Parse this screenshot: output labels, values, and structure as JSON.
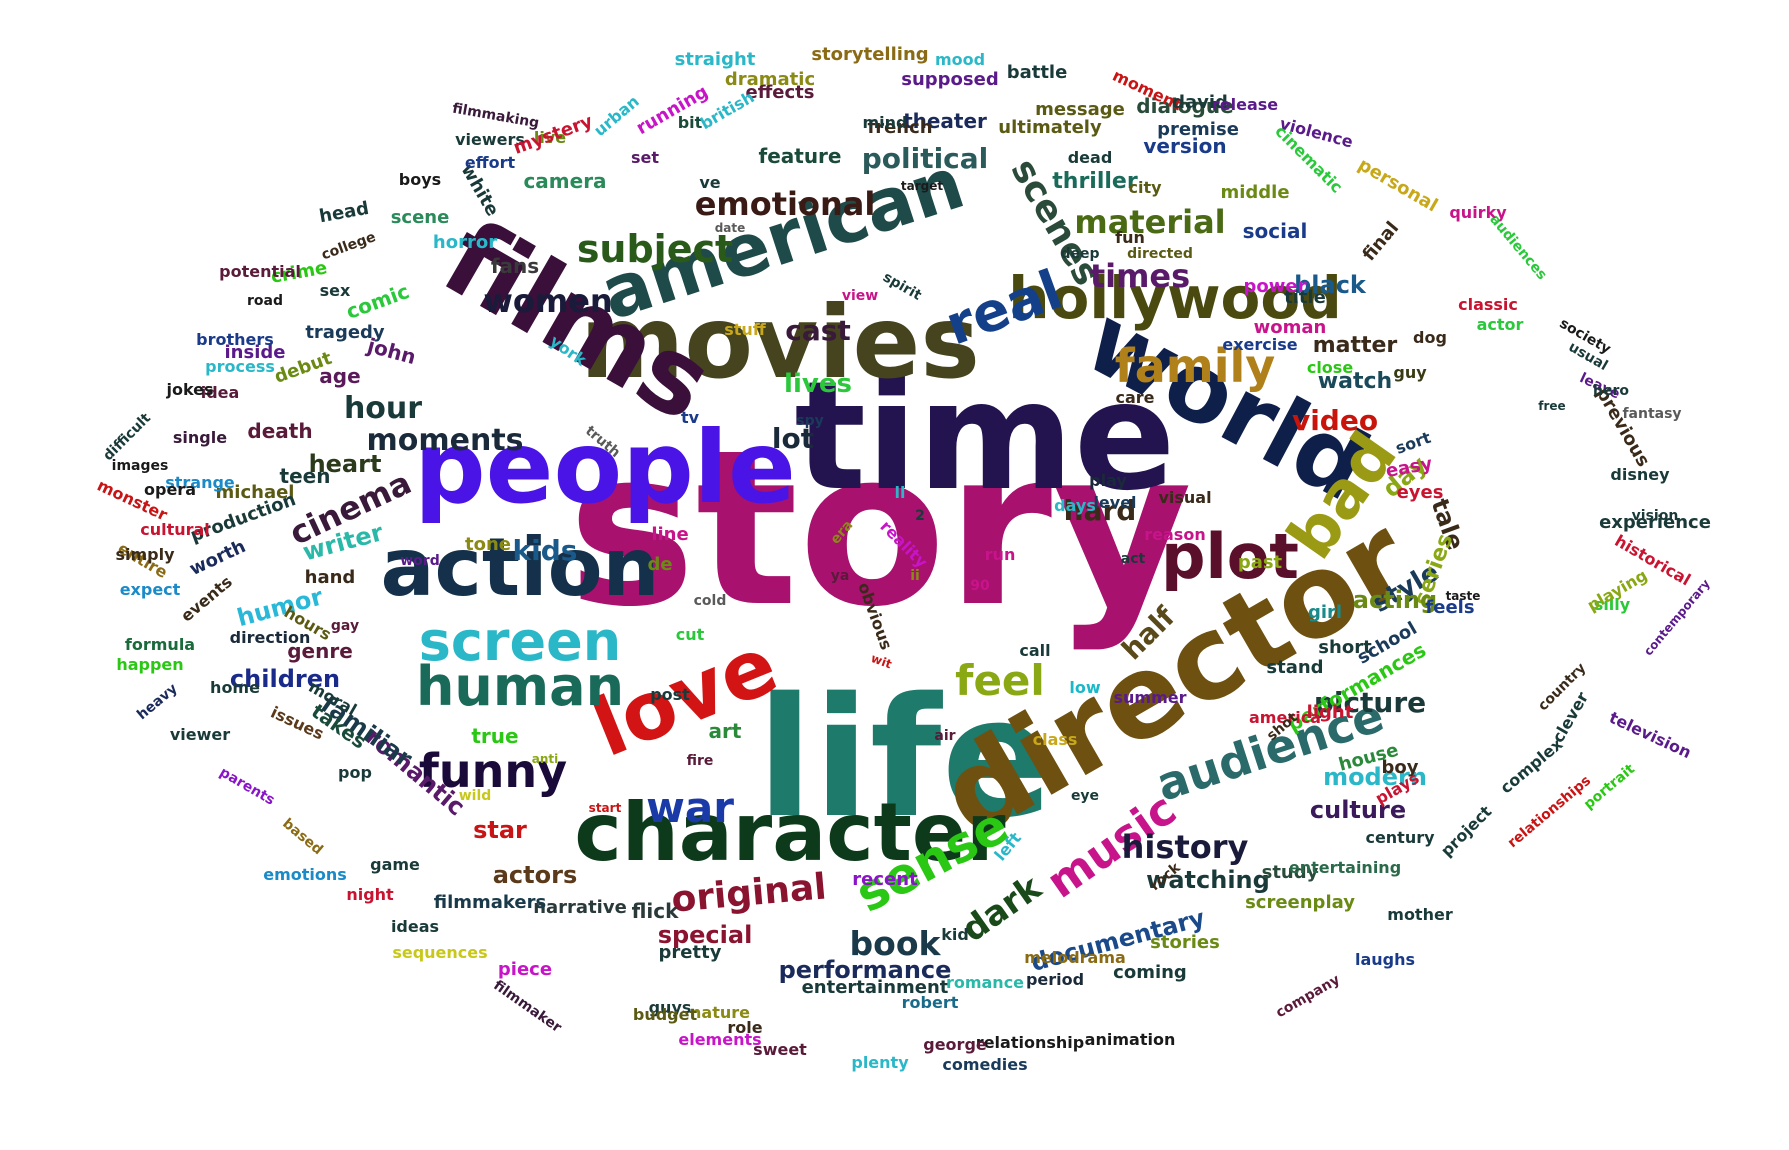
{
  "words": [
    {
      "t": "story",
      "c": "#a8116e"
    },
    {
      "t": "time",
      "c": "#23134f"
    },
    {
      "t": "life",
      "c": "#1e7a6a"
    },
    {
      "t": "movies",
      "c": "#45441e"
    },
    {
      "t": "people",
      "c": "#4a14e6"
    },
    {
      "t": "director",
      "c": "#6e5110"
    },
    {
      "t": "films",
      "c": "#3a0f3a"
    },
    {
      "t": "world",
      "c": "#0e1f4a"
    },
    {
      "t": "american",
      "c": "#1f4a4a"
    },
    {
      "t": "action",
      "c": "#14304a"
    },
    {
      "t": "character",
      "c": "#0d3a1a"
    },
    {
      "t": "love",
      "c": "#d31414"
    },
    {
      "t": "hollywood",
      "c": "#4a4a10"
    },
    {
      "t": "human",
      "c": "#1a6a5a"
    },
    {
      "t": "screen",
      "c": "#2ab8c8"
    },
    {
      "t": "plot",
      "c": "#5a0f2a"
    },
    {
      "t": "bad",
      "c": "#9a9a14"
    },
    {
      "t": "real",
      "c": "#14408a"
    },
    {
      "t": "family",
      "c": "#b0801a"
    },
    {
      "t": "audience",
      "c": "#2a6a6a"
    },
    {
      "t": "funny",
      "c": "#1a0a3a"
    },
    {
      "t": "sense",
      "c": "#2ac814"
    },
    {
      "t": "war",
      "c": "#1a3aa8"
    },
    {
      "t": "music",
      "c": "#c8148a"
    },
    {
      "t": "feel",
      "c": "#8aa814"
    },
    {
      "t": "original",
      "c": "#8a1430"
    },
    {
      "t": "subject",
      "c": "#2a5a1a"
    },
    {
      "t": "moments",
      "c": "#1a2a3a"
    },
    {
      "t": "scenes",
      "c": "#2a4a3a"
    },
    {
      "t": "emotional",
      "c": "#3a1a14"
    },
    {
      "t": "material",
      "c": "#4a6a14"
    },
    {
      "t": "women",
      "c": "#1a1a3a"
    },
    {
      "t": "times",
      "c": "#5a1a6a"
    },
    {
      "t": "political",
      "c": "#2a5a5a"
    },
    {
      "t": "history",
      "c": "#1a1a3a"
    },
    {
      "t": "book",
      "c": "#1a3a4a"
    },
    {
      "t": "dark",
      "c": "#1a4a1a"
    },
    {
      "t": "cinema",
      "c": "#3a1a3a"
    },
    {
      "t": "hour",
      "c": "#1a3a3a"
    },
    {
      "t": "hard",
      "c": "#3a2a1a"
    },
    {
      "t": "picture",
      "c": "#1a3a3a"
    },
    {
      "t": "video",
      "c": "#c8140a"
    },
    {
      "t": "lot",
      "c": "#1a2a3a"
    },
    {
      "t": "lives",
      "c": "#2ac83a"
    },
    {
      "t": "cast",
      "c": "#3a1a3a"
    },
    {
      "t": "kids",
      "c": "#1a5a8a"
    },
    {
      "t": "half",
      "c": "#5a4a1a"
    },
    {
      "t": "style",
      "c": "#1a3a5a"
    },
    {
      "t": "documentary",
      "c": "#1a4a8a"
    },
    {
      "t": "performance",
      "c": "#1a2a5a"
    },
    {
      "t": "watching",
      "c": "#1a3a3a"
    },
    {
      "t": "actors",
      "c": "#5a3a1a"
    },
    {
      "t": "special",
      "c": "#8a1430"
    },
    {
      "t": "star",
      "c": "#c81414"
    },
    {
      "t": "culture",
      "c": "#3a1a5a"
    },
    {
      "t": "modern",
      "c": "#2ab8c8"
    },
    {
      "t": "heart",
      "c": "#2a3a1a"
    },
    {
      "t": "children",
      "c": "#1a2a8a"
    },
    {
      "t": "humor",
      "c": "#2ab8d8"
    },
    {
      "t": "writer",
      "c": "#2ab8a8"
    },
    {
      "t": "romantic",
      "c": "#5a1a6a"
    },
    {
      "t": "familiar",
      "c": "#1a3a4a"
    },
    {
      "t": "black",
      "c": "#1a5a8a"
    },
    {
      "t": "day",
      "c": "#8aa814"
    },
    {
      "t": "tale",
      "c": "#3a2a1a"
    },
    {
      "t": "series",
      "c": "#8aa814"
    },
    {
      "t": "acting",
      "c": "#6a8a14"
    },
    {
      "t": "watch",
      "c": "#1a4a5a"
    },
    {
      "t": "matter",
      "c": "#3a2a1a"
    },
    {
      "t": "thriller",
      "c": "#1a6a5a"
    },
    {
      "t": "version",
      "c": "#1a3a8a"
    },
    {
      "t": "social",
      "c": "#1a3a8a"
    },
    {
      "t": "feature",
      "c": "#1a4a3a"
    },
    {
      "t": "theater",
      "c": "#1a2a5a"
    },
    {
      "t": "dialogue",
      "c": "#2a4a3a"
    },
    {
      "t": "camera",
      "c": "#2a8a5a"
    },
    {
      "t": "fans",
      "c": "#3a3a3a"
    },
    {
      "t": "comic",
      "c": "#2ac83a"
    },
    {
      "t": "john",
      "c": "#5a1a6a"
    },
    {
      "t": "age",
      "c": "#5a1a5a"
    },
    {
      "t": "death",
      "c": "#5a1a3a"
    },
    {
      "t": "teen",
      "c": "#1a3a3a"
    },
    {
      "t": "true",
      "c": "#2ac814"
    },
    {
      "t": "art",
      "c": "#2a8a3a"
    },
    {
      "t": "genre",
      "c": "#5a1a3a"
    },
    {
      "t": "takes",
      "c": "#1a4a3a"
    },
    {
      "t": "flick",
      "c": "#2a3a3a"
    },
    {
      "t": "narrative",
      "c": "#2a3a3a"
    },
    {
      "t": "filmmakers",
      "c": "#1a3a4a"
    },
    {
      "t": "pretty",
      "c": "#1a3a3a"
    },
    {
      "t": "entertainment",
      "c": "#1a3a3a"
    },
    {
      "t": "coming",
      "c": "#1a3a3a"
    },
    {
      "t": "stories",
      "c": "#6a8a14"
    },
    {
      "t": "screenplay",
      "c": "#6a8a14"
    },
    {
      "t": "study",
      "c": "#2a4a3a"
    },
    {
      "t": "stand",
      "c": "#1a3a3a"
    },
    {
      "t": "performances",
      "c": "#2ac814"
    },
    {
      "t": "short",
      "c": "#1a3a3a"
    },
    {
      "t": "girl",
      "c": "#1a8a8a"
    },
    {
      "t": "house",
      "c": "#2a8a3a"
    },
    {
      "t": "boy",
      "c": "#3a2a1a"
    },
    {
      "t": "light",
      "c": "#c81430"
    },
    {
      "t": "school",
      "c": "#1a3a5a"
    },
    {
      "t": "feels",
      "c": "#1a3a8a"
    },
    {
      "t": "woman",
      "c": "#c8148a"
    },
    {
      "t": "title",
      "c": "#1a3a3a"
    },
    {
      "t": "middle",
      "c": "#6a8a14"
    },
    {
      "t": "ultimately",
      "c": "#5a5a14"
    },
    {
      "t": "french",
      "c": "#3a2a1a"
    },
    {
      "t": "effects",
      "c": "#5a1a3a"
    },
    {
      "t": "horror",
      "c": "#2ab8c8"
    },
    {
      "t": "scene",
      "c": "#2a8a5a"
    },
    {
      "t": "white",
      "c": "#1a3a3a"
    },
    {
      "t": "live",
      "c": "#6a8a14"
    },
    {
      "t": "bit",
      "c": "#1a4a3a"
    },
    {
      "t": "set",
      "c": "#5a1a6a"
    },
    {
      "t": "ve",
      "c": "#1a3a3a"
    },
    {
      "t": "tv",
      "c": "#1a3a8a"
    },
    {
      "t": "ll",
      "c": "#2ab8c8"
    },
    {
      "t": "obvious",
      "c": "#3a2a1a"
    },
    {
      "t": "reality",
      "c": "#c814c8"
    },
    {
      "t": "tragedy",
      "c": "#1a3a5a"
    },
    {
      "t": "debut",
      "c": "#6a8a14"
    },
    {
      "t": "michael",
      "c": "#5a5a14"
    },
    {
      "t": "worth",
      "c": "#1a2a5a"
    },
    {
      "t": "production",
      "c": "#1a3a3a"
    },
    {
      "t": "hand",
      "c": "#3a2a1a"
    },
    {
      "t": "head",
      "c": "#1a3a3a"
    },
    {
      "t": "crime",
      "c": "#2ac814"
    },
    {
      "t": "inside",
      "c": "#5a1a8a"
    },
    {
      "t": "idea",
      "c": "#5a1a3a"
    },
    {
      "t": "single",
      "c": "#3a1a3a"
    },
    {
      "t": "strange",
      "c": "#1a8ac8"
    },
    {
      "t": "events",
      "c": "#3a2a1a"
    },
    {
      "t": "hours",
      "c": "#5a5a14"
    },
    {
      "t": "moral",
      "c": "#1a3a3a"
    },
    {
      "t": "pop",
      "c": "#1a3a3a"
    },
    {
      "t": "issues",
      "c": "#5a3a1a"
    },
    {
      "t": "direction",
      "c": "#1a2a3a"
    },
    {
      "t": "home",
      "c": "#1a3a3a"
    },
    {
      "t": "mind",
      "c": "#1a3a3a"
    },
    {
      "t": "dead",
      "c": "#1a3a3a"
    },
    {
      "t": "city",
      "c": "#5a5a14"
    },
    {
      "t": "fun",
      "c": "#3a2a1a"
    },
    {
      "t": "care",
      "c": "#3a2a1a"
    },
    {
      "t": "play",
      "c": "#1a2a3a"
    },
    {
      "t": "days",
      "c": "#2ab8c8"
    },
    {
      "t": "level",
      "c": "#1a3a5a"
    },
    {
      "t": "reason",
      "c": "#c8148a"
    },
    {
      "t": "visual",
      "c": "#3a2a1a"
    },
    {
      "t": "past",
      "c": "#8aa814"
    },
    {
      "t": "easy",
      "c": "#c8148a"
    },
    {
      "t": "eyes",
      "c": "#c81430"
    },
    {
      "t": "sort",
      "c": "#1a3a5a"
    },
    {
      "t": "guy",
      "c": "#3a3a14"
    },
    {
      "t": "dog",
      "c": "#3a2a1a"
    },
    {
      "t": "close",
      "c": "#2ac814"
    },
    {
      "t": "summer",
      "c": "#5a1a8a"
    },
    {
      "t": "america",
      "c": "#c81430"
    },
    {
      "t": "plays",
      "c": "#c81430"
    },
    {
      "t": "century",
      "c": "#1a3a3a"
    },
    {
      "t": "entertaining",
      "c": "#2a6a4a"
    },
    {
      "t": "melodrama",
      "c": "#8a6a14"
    },
    {
      "t": "period",
      "c": "#1a2a3a"
    },
    {
      "t": "romance",
      "c": "#2ab8a8"
    },
    {
      "t": "robert",
      "c": "#1a6a8a"
    },
    {
      "t": "role",
      "c": "#3a2a1a"
    },
    {
      "t": "guys",
      "c": "#1a3a3a"
    },
    {
      "t": "nature",
      "c": "#8a8a14"
    },
    {
      "t": "tone",
      "c": "#8a8a14"
    },
    {
      "t": "line",
      "c": "#c8148a"
    },
    {
      "t": "de",
      "c": "#6a8a14"
    },
    {
      "t": "run",
      "c": "#c8148a"
    },
    {
      "t": "post",
      "c": "#1a3a3a"
    },
    {
      "t": "cut",
      "c": "#2ac83a"
    },
    {
      "t": "spy",
      "c": "#1a3a5a"
    },
    {
      "t": "truth",
      "c": "#5a5a5a"
    },
    {
      "t": "cold",
      "c": "#5a5a5a"
    },
    {
      "t": "90",
      "c": "#c8148a"
    },
    {
      "t": "act",
      "c": "#1a3a3a"
    },
    {
      "t": "call",
      "c": "#1a3a3a"
    },
    {
      "t": "low",
      "c": "#1ab8c8"
    },
    {
      "t": "class",
      "c": "#c8a81a"
    },
    {
      "t": "air",
      "c": "#5a1a3a"
    },
    {
      "t": "fire",
      "c": "#5a1a3a"
    },
    {
      "t": "shot",
      "c": "#3a2a1a"
    },
    {
      "t": "rock",
      "c": "#3a2a1a"
    },
    {
      "t": "eye",
      "c": "#1a3a3a"
    },
    {
      "t": "recent",
      "c": "#8a14c8"
    },
    {
      "t": "kid",
      "c": "#1a3a3a"
    },
    {
      "t": "left",
      "c": "#2ab8c8"
    },
    {
      "t": "wit",
      "c": "#c81414"
    },
    {
      "t": "era",
      "c": "#8a8a14"
    },
    {
      "t": "ya",
      "c": "#5a1a3a"
    },
    {
      "t": "ii",
      "c": "#8a8a14"
    },
    {
      "t": "word",
      "c": "#5a1a8a"
    },
    {
      "t": "straight",
      "c": "#2ab8c8"
    },
    {
      "t": "storytelling",
      "c": "#8a6a14"
    },
    {
      "t": "mood",
      "c": "#2ab8c8"
    },
    {
      "t": "battle",
      "c": "#1a3a3a"
    },
    {
      "t": "moment",
      "c": "#c81414"
    },
    {
      "t": "supposed",
      "c": "#5a1a8a"
    },
    {
      "t": "dramatic",
      "c": "#8a8a14"
    },
    {
      "t": "david",
      "c": "#1a3a3a"
    },
    {
      "t": "message",
      "c": "#5a5a14"
    },
    {
      "t": "release",
      "c": "#5a1a8a"
    },
    {
      "t": "violence",
      "c": "#5a1a8a"
    },
    {
      "t": "premise",
      "c": "#1a3a5a"
    },
    {
      "t": "cinematic",
      "c": "#2ac83a"
    },
    {
      "t": "personal",
      "c": "#c8a81a"
    },
    {
      "t": "quirky",
      "c": "#c8148a"
    },
    {
      "t": "audiences",
      "c": "#2ac83a"
    },
    {
      "t": "final",
      "c": "#3a2a1a"
    },
    {
      "t": "classic",
      "c": "#c81430"
    },
    {
      "t": "actor",
      "c": "#2ac83a"
    },
    {
      "t": "society",
      "c": "#1a1a1a"
    },
    {
      "t": "usual",
      "c": "#1a3a3a"
    },
    {
      "t": "leave",
      "c": "#5a1a8a"
    },
    {
      "t": "previous",
      "c": "#3a2a1a"
    },
    {
      "t": "fantasy",
      "c": "#5a5a5a"
    },
    {
      "t": "hero",
      "c": "#1a3a3a"
    },
    {
      "t": "free",
      "c": "#1a3a3a"
    },
    {
      "t": "disney",
      "c": "#1a3a3a"
    },
    {
      "t": "vision",
      "c": "#1a3a3a"
    },
    {
      "t": "experience",
      "c": "#1a3a3a"
    },
    {
      "t": "historical",
      "c": "#c81430"
    },
    {
      "t": "silly",
      "c": "#2ac83a"
    },
    {
      "t": "playing",
      "c": "#8aa814"
    },
    {
      "t": "taste",
      "c": "#1a1a1a"
    },
    {
      "t": "contemporary",
      "c": "#5a1a8a"
    },
    {
      "t": "country",
      "c": "#3a2a1a"
    },
    {
      "t": "television",
      "c": "#5a1a8a"
    },
    {
      "t": "clever",
      "c": "#1a3a3a"
    },
    {
      "t": "portrait",
      "c": "#2ac814"
    },
    {
      "t": "complex",
      "c": "#1a3a3a"
    },
    {
      "t": "relationships",
      "c": "#c81414"
    },
    {
      "t": "project",
      "c": "#1a3a3a"
    },
    {
      "t": "mother",
      "c": "#1a3a3a"
    },
    {
      "t": "laughs",
      "c": "#1a3a8a"
    },
    {
      "t": "company",
      "c": "#5a1a3a"
    },
    {
      "t": "animation",
      "c": "#1a1a1a"
    },
    {
      "t": "relationship",
      "c": "#1a1a1a"
    },
    {
      "t": "george",
      "c": "#5a1a3a"
    },
    {
      "t": "comedies",
      "c": "#1a3a5a"
    },
    {
      "t": "plenty",
      "c": "#2ab8c8"
    },
    {
      "t": "sweet",
      "c": "#5a1a3a"
    },
    {
      "t": "elements",
      "c": "#c814c8"
    },
    {
      "t": "budget",
      "c": "#5a5a14"
    },
    {
      "t": "filmmaker",
      "c": "#3a1a3a"
    },
    {
      "t": "piece",
      "c": "#c814c8"
    },
    {
      "t": "sequences",
      "c": "#c8c81a"
    },
    {
      "t": "ideas",
      "c": "#1a3a3a"
    },
    {
      "t": "night",
      "c": "#c81430"
    },
    {
      "t": "game",
      "c": "#1a3a3a"
    },
    {
      "t": "emotions",
      "c": "#1a8ac8"
    },
    {
      "t": "based",
      "c": "#8a6a14"
    },
    {
      "t": "parents",
      "c": "#8a14c8"
    },
    {
      "t": "anti",
      "c": "#8aa814"
    },
    {
      "t": "wild",
      "c": "#c8c81a"
    },
    {
      "t": "start",
      "c": "#c81414"
    },
    {
      "t": "viewer",
      "c": "#1a3a3a"
    },
    {
      "t": "heavy",
      "c": "#1a2a5a"
    },
    {
      "t": "happen",
      "c": "#2ac814"
    },
    {
      "t": "formula",
      "c": "#1a6a3a"
    },
    {
      "t": "gay",
      "c": "#5a1a3a"
    },
    {
      "t": "expect",
      "c": "#1a8ac8"
    },
    {
      "t": "entire",
      "c": "#8a6a14"
    },
    {
      "t": "simply",
      "c": "#3a2a1a"
    },
    {
      "t": "cultural",
      "c": "#c81430"
    },
    {
      "t": "monster",
      "c": "#c81414"
    },
    {
      "t": "opera",
      "c": "#1a1a1a"
    },
    {
      "t": "images",
      "c": "#1a1a1a"
    },
    {
      "t": "difficult",
      "c": "#1a3a3a"
    },
    {
      "t": "jokes",
      "c": "#1a1a1a"
    },
    {
      "t": "process",
      "c": "#2ab8c8"
    },
    {
      "t": "brothers",
      "c": "#1a3a8a"
    },
    {
      "t": "road",
      "c": "#1a1a1a"
    },
    {
      "t": "potential",
      "c": "#5a1a3a"
    },
    {
      "t": "sex",
      "c": "#1a3a3a"
    },
    {
      "t": "college",
      "c": "#3a2a1a"
    },
    {
      "t": "boys",
      "c": "#1a1a1a"
    },
    {
      "t": "viewers",
      "c": "#1a3a3a"
    },
    {
      "t": "filmmaking",
      "c": "#3a1a3a"
    },
    {
      "t": "mystery",
      "c": "#c81430"
    },
    {
      "t": "urban",
      "c": "#2ab8c8"
    },
    {
      "t": "running",
      "c": "#c814c8"
    },
    {
      "t": "british",
      "c": "#2ab8c8"
    },
    {
      "t": "effort",
      "c": "#1a3a8a"
    },
    {
      "t": "target",
      "c": "#1a1a1a"
    },
    {
      "t": "date",
      "c": "#5a5a5a"
    },
    {
      "t": "deep",
      "c": "#1a3a3a"
    },
    {
      "t": "directed",
      "c": "#5a5a14"
    },
    {
      "t": "spirit",
      "c": "#1a3a3a"
    },
    {
      "t": "view",
      "c": "#c8148a"
    },
    {
      "t": "power",
      "c": "#c814c8"
    },
    {
      "t": "york",
      "c": "#2ab8c8"
    },
    {
      "t": "stuff",
      "c": "#c8a81a"
    },
    {
      "t": "exercise",
      "c": "#1a3a8a"
    },
    {
      "t": "2",
      "c": "#1a3a3a"
    }
  ]
}
